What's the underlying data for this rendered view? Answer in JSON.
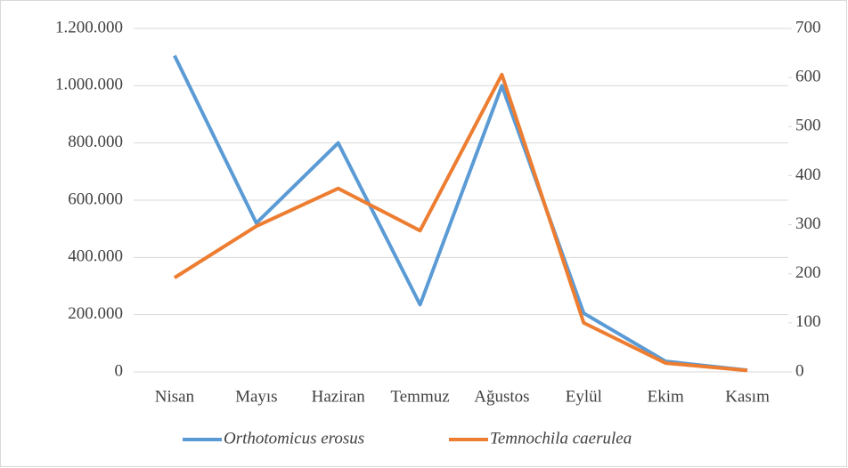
{
  "chart_data": {
    "type": "line",
    "categories": [
      "Nisan",
      "Mayıs",
      "Haziran",
      "Temmuz",
      "Ağustos",
      "Eylül",
      "Ekim",
      "Kasım"
    ],
    "series": [
      {
        "name": "Orthotomicus erosus",
        "color": "#5b9bd5",
        "values": [
          1105000,
          520000,
          800000,
          235000,
          1000000,
          205000,
          37000,
          6000
        ]
      },
      {
        "name": "Temnochila caerulea",
        "color": "#ed7d31",
        "axis": "y2",
        "values": [
          192,
          297,
          374,
          288,
          606,
          100,
          18,
          3
        ]
      }
    ],
    "ylim": [
      0,
      1200000
    ],
    "yticks": [
      0,
      {
        "value": 200000,
        "label": "200.000"
      },
      {
        "value": 400000,
        "label": "400.000"
      },
      {
        "value": 600000,
        "label": "600.000"
      },
      {
        "value": 800000,
        "label": "800.000"
      },
      {
        "value": 1000000,
        "label": "1.000.000"
      },
      {
        "value": 1200000,
        "label": "1.200.000"
      }
    ],
    "y2lim": [
      0,
      700
    ],
    "y2ticks": [
      0,
      100,
      200,
      300,
      400,
      500,
      600,
      700
    ],
    "grid": true,
    "legend": "bottom"
  }
}
